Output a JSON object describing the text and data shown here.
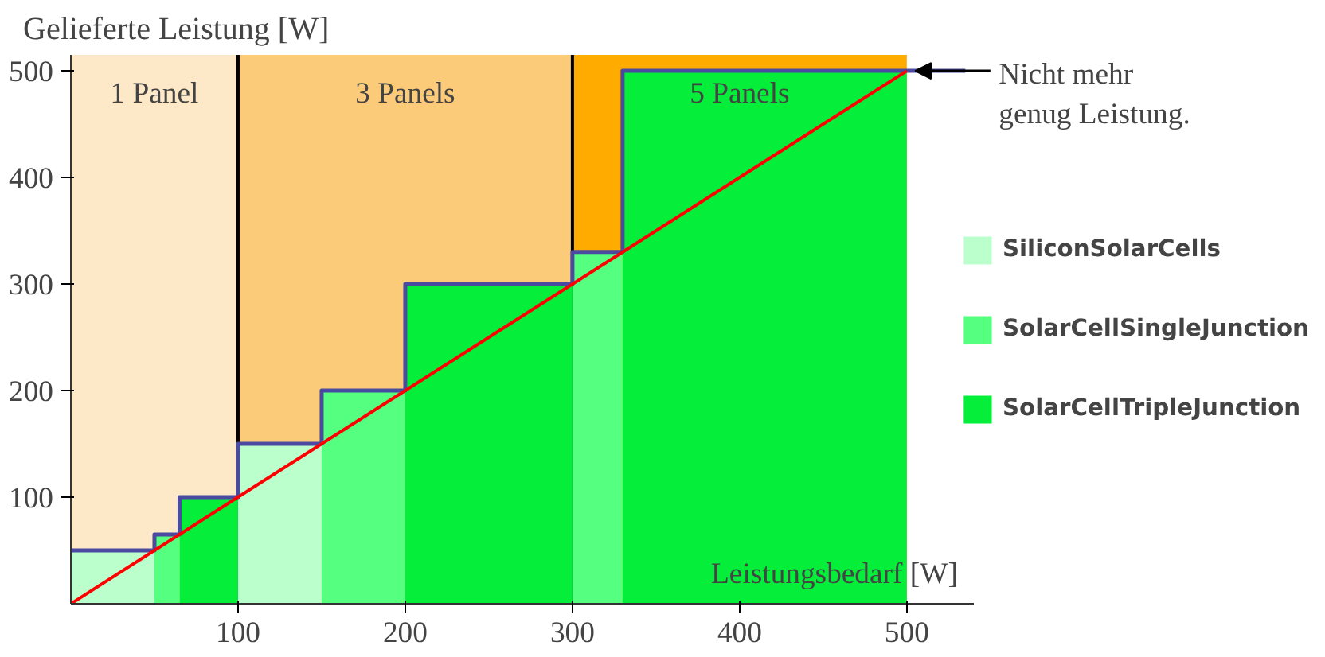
{
  "chart_data": {
    "type": "histogram",
    "ylabel": "Gelieferte Leistung [W]",
    "xlabel": "Leistungsbedarf [W]",
    "xlim": [
      0,
      540
    ],
    "ylim": [
      0,
      515
    ],
    "xticks": [
      100,
      200,
      300,
      400,
      500
    ],
    "yticks": [
      100,
      200,
      300,
      400,
      500
    ],
    "grid": false,
    "legend": "right",
    "bands": [
      {
        "axis": "x",
        "from": 0,
        "to": 100,
        "label": "1 Panel",
        "color": "#fde8c8"
      },
      {
        "axis": "x",
        "from": 100,
        "to": 300,
        "label": "3 Panels",
        "color": "#fccb7a"
      },
      {
        "axis": "x",
        "from": 300,
        "to": 500,
        "label": "5 Panels",
        "color": "#ffab00"
      }
    ],
    "ref_lines": [
      {
        "axis": "x",
        "value": 100,
        "color": "#000000"
      },
      {
        "axis": "x",
        "value": 300,
        "color": "#000000"
      }
    ],
    "series": [
      {
        "name": "SiliconSolarCells",
        "color": "#bbffcc",
        "bins": [
          0,
          50,
          100,
          150
        ],
        "values": [
          50,
          null,
          150
        ]
      },
      {
        "name": "SolarCellSingleJunction",
        "color": "#55ff80",
        "bins": [
          50,
          65,
          150,
          200,
          300,
          330
        ],
        "values": [
          65,
          null,
          200,
          null,
          330
        ]
      },
      {
        "name": "SolarCellTripleJunction",
        "color": "#05ef3a",
        "bins": [
          65,
          100,
          200,
          300,
          330,
          500
        ],
        "values": [
          100,
          null,
          300,
          null,
          500
        ]
      },
      {
        "type": "step",
        "color": "#4a4aa0",
        "x": [
          0,
          50,
          65,
          100,
          150,
          200,
          300,
          330,
          535
        ],
        "values": [
          50,
          65,
          100,
          150,
          200,
          300,
          330,
          500,
          500
        ]
      },
      {
        "type": "line",
        "color": "#ff0000",
        "x": [
          0,
          500
        ],
        "values": [
          0,
          500
        ]
      }
    ],
    "annotations": [
      {
        "text": "Nicht mehr\ngenug Leistung.",
        "x": 505,
        "y": 500
      }
    ]
  }
}
